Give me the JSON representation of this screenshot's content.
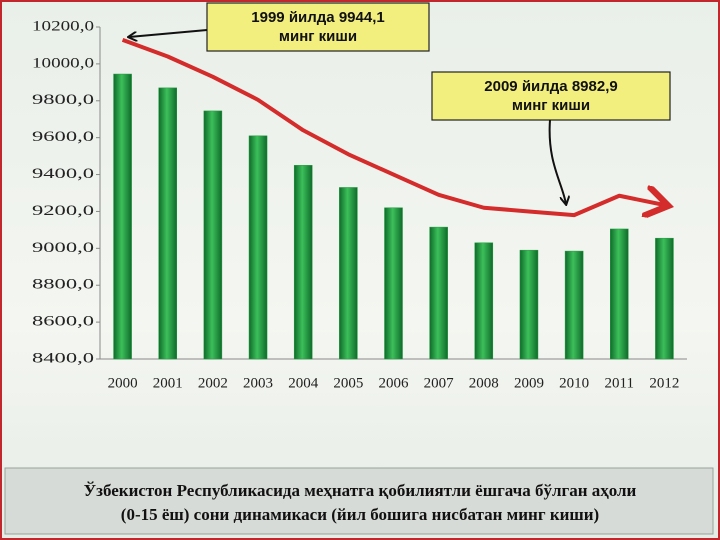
{
  "chart_data": {
    "type": "bar",
    "title": [
      "Ўзбекистон Республикасида меҳнатга қобилиятли ёшгача бўлган аҳоли",
      "(0-15 ёш) сони динамикаси (йил бошига нисбатан минг киши)"
    ],
    "annotations": [
      [
        "1999 йилда 9944,1",
        "минг киши"
      ],
      [
        "2009 йилда 8982,9",
        "минг киши"
      ]
    ],
    "categories": [
      "2000",
      "2001",
      "2002",
      "2003",
      "2004",
      "2005",
      "2006",
      "2007",
      "2008",
      "2009",
      "2010",
      "2011",
      "2012"
    ],
    "series": [
      {
        "type": "bar",
        "color": "#1e9a3c",
        "values": [
          9945,
          9870,
          9745,
          9610,
          9450,
          9330,
          9220,
          9115,
          9030,
          8990,
          8985,
          9105,
          9055
        ]
      },
      {
        "type": "line",
        "color": "#d42b2b",
        "values": [
          10130,
          10040,
          9930,
          9805,
          9640,
          9510,
          9400,
          9290,
          9220,
          9200,
          9180,
          9285,
          9235
        ]
      }
    ],
    "ylim": [
      8400,
      10200
    ],
    "yticks": [
      {
        "value": 8400,
        "label": "8400,0"
      },
      {
        "value": 8600,
        "label": "8600,0"
      },
      {
        "value": 8800,
        "label": "8800,0"
      },
      {
        "value": 9000,
        "label": "9000,0"
      },
      {
        "value": 9200,
        "label": "9200,0"
      },
      {
        "value": 9400,
        "label": "9400,0"
      },
      {
        "value": 9600,
        "label": "9600,0"
      },
      {
        "value": 9800,
        "label": "9800,0"
      },
      {
        "value": 10000,
        "label": "10000,0"
      },
      {
        "value": 10200,
        "label": "10200,0"
      }
    ],
    "grid": false
  }
}
